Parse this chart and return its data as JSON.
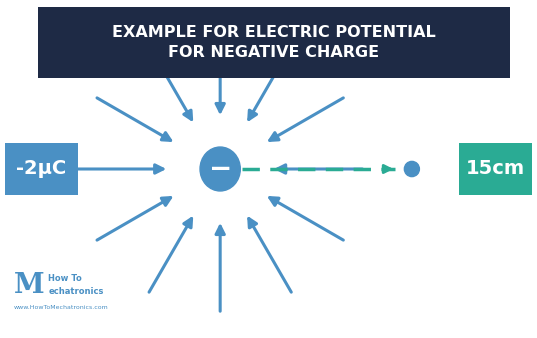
{
  "bg_color": "#ffffff",
  "title_box_color": "#1e2a45",
  "title_text": "EXAMPLE FOR ELECTRIC POTENTIAL\nFOR NEGATIVE CHARGE",
  "title_text_color": "#ffffff",
  "arrow_color": "#4a90c4",
  "dashed_line_color": "#2aab94",
  "charge_color": "#4a90c4",
  "charge_symbol": "−",
  "label_left_text": "-2μC",
  "label_left_bg": "#4a90c4",
  "label_right_text": "15cm",
  "label_right_bg": "#2aab94",
  "label_text_color": "#ffffff",
  "num_arrows": 12,
  "watermark_text1": "How To",
  "watermark_text2": "echatronics",
  "watermark_M": "M",
  "watermark_url": "www.HowToMechatronics.com"
}
